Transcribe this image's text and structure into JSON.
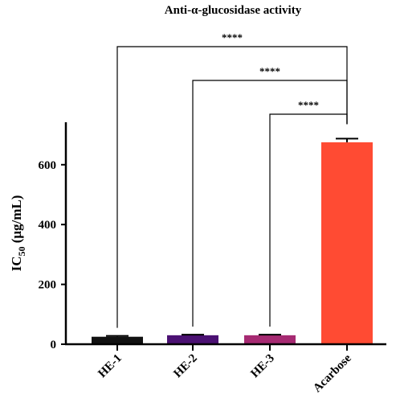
{
  "chart_data": {
    "type": "bar",
    "title": "Anti-α-glucosidase activity",
    "ylabel": "IC",
    "ylabel_sub": "50",
    "ylabel_unit": " (μg/mL)",
    "xlabel": "",
    "categories": [
      "HE-1",
      "HE-2",
      "HE-3",
      "Acarbose"
    ],
    "values": [
      25,
      30,
      30,
      675
    ],
    "errors": [
      3,
      2,
      2,
      12
    ],
    "colors": [
      "#111111",
      "#4b1173",
      "#a62a72",
      "#ff4b33"
    ],
    "ylim": [
      0,
      750
    ],
    "yticks": [
      0,
      200,
      400,
      600
    ],
    "grid": false,
    "legend": "none",
    "significance": [
      {
        "from": 0,
        "to": 3,
        "label": "****"
      },
      {
        "from": 1,
        "to": 3,
        "label": "****"
      },
      {
        "from": 2,
        "to": 3,
        "label": "****"
      }
    ]
  }
}
